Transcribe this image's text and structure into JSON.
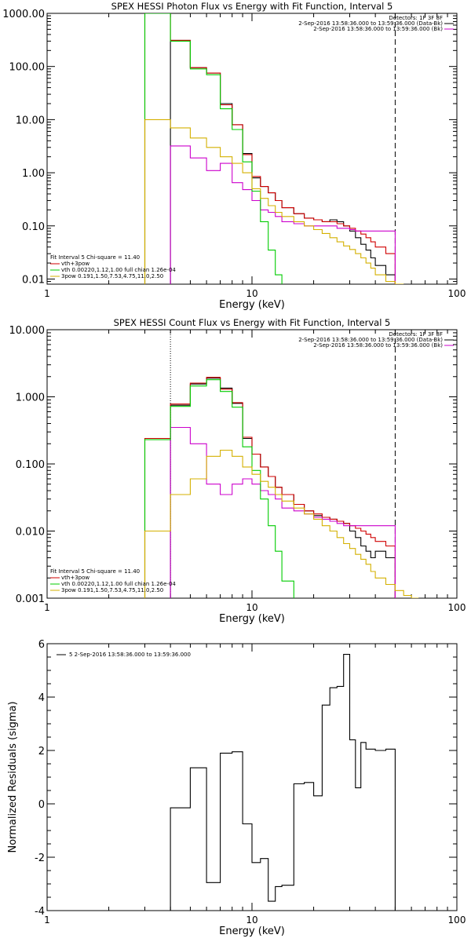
{
  "chart_data": [
    {
      "type": "line",
      "title": "SPEX HESSI Photon Flux vs Energy with Fit Function, Interval 5",
      "xlabel": "Energy (keV)",
      "ylabel": "",
      "xscale": "log",
      "yscale": "log",
      "xlim": [
        1,
        100
      ],
      "ylim": [
        0.008,
        1000
      ],
      "x_ticks": [
        "1",
        "10",
        "100"
      ],
      "y_ticks": [
        "0.01",
        "0.10",
        "1.00",
        "10.00",
        "100.00",
        "1000.00"
      ],
      "legend_top_right": [
        "Detectors: 1F 3F 8F",
        "2-Sep-2016 13:58:36.000 to 13:59:36.000 (Data-Bk)",
        "2-Sep-2016 13:58:36.000 to 13:59:36.000 (Bk)"
      ],
      "legend_bottom_left": [
        "Fit Interval 5   Chi-square = 11.40",
        "vth+3pow",
        "vth 0.00220,1.12,1.00  full chian 1.26e-04",
        "3pow 0.191,1.50,7.53,4.75,11.0,2.50"
      ],
      "markers": {
        "dashed_x": 50
      },
      "edges": [
        3,
        4,
        5,
        6,
        7,
        8,
        9,
        10,
        11,
        12,
        13,
        14,
        16,
        18,
        20,
        22,
        24,
        26,
        28,
        30,
        32,
        34,
        36,
        38,
        40,
        45,
        50,
        55,
        60
      ],
      "series": [
        {
          "name": "Data-Bk",
          "color": "#000000",
          "values": [
            null,
            310,
            95,
            75,
            20,
            8,
            2.3,
            0.8,
            0.55,
            0.42,
            0.3,
            0.22,
            0.17,
            0.14,
            0.13,
            0.12,
            0.13,
            0.12,
            0.1,
            0.08,
            0.06,
            0.045,
            0.035,
            0.025,
            0.018,
            0.012,
            null,
            null
          ]
        },
        {
          "name": "vth+3pow",
          "color": "#d00000",
          "values": [
            1000,
            310,
            95,
            75,
            19,
            8,
            2.2,
            0.85,
            0.55,
            0.42,
            0.3,
            0.22,
            0.17,
            0.14,
            0.13,
            0.12,
            0.12,
            0.11,
            0.1,
            0.09,
            0.08,
            0.07,
            0.06,
            0.05,
            0.04,
            0.03,
            null,
            null
          ]
        },
        {
          "name": "Bk",
          "color": "#cc00cc",
          "values": [
            null,
            3.2,
            1.9,
            1.1,
            1.5,
            0.65,
            0.48,
            0.3,
            0.2,
            0.18,
            0.15,
            0.12,
            0.11,
            0.1,
            0.1,
            0.1,
            0.1,
            0.09,
            0.09,
            0.085,
            0.08,
            0.08,
            0.08,
            0.08,
            0.08,
            0.08,
            null,
            null
          ]
        },
        {
          "name": "vth",
          "color": "#00cc00",
          "values": [
            1000,
            300,
            90,
            70,
            16,
            6.5,
            1.6,
            0.45,
            0.12,
            0.035,
            0.012,
            null,
            null,
            null,
            null,
            null,
            null,
            null,
            null,
            null,
            null,
            null,
            null,
            null,
            null,
            null,
            null,
            null
          ]
        },
        {
          "name": "3pow",
          "color": "#d4b000",
          "values": [
            10,
            7,
            4.5,
            3,
            2,
            1.5,
            1.0,
            0.5,
            0.33,
            0.24,
            0.18,
            0.15,
            0.12,
            0.1,
            0.085,
            0.072,
            0.06,
            0.05,
            0.042,
            0.036,
            0.03,
            0.025,
            0.02,
            0.016,
            0.012,
            0.009,
            0.007,
            null
          ]
        }
      ]
    },
    {
      "type": "line",
      "title": "SPEX HESSI Count Flux vs Energy with Fit Function, Interval 5",
      "xlabel": "Energy (keV)",
      "ylabel": "",
      "xscale": "log",
      "yscale": "log",
      "xlim": [
        1,
        100
      ],
      "ylim": [
        0.001,
        10
      ],
      "x_ticks": [
        "1",
        "10",
        "100"
      ],
      "y_ticks": [
        "0.001",
        "0.010",
        "0.100",
        "1.000",
        "10.000"
      ],
      "legend_top_right": [
        "Detectors: 1F 3F 8F",
        "2-Sep-2016 13:58:36.000 to 13:59:36.000 (Data-Bk)",
        "2-Sep-2016 13:58:36.000 to 13:59:36.000 (Bk)"
      ],
      "legend_bottom_left": [
        "Fit Interval 5   Chi-square = 11.40",
        "vth+3pow",
        "vth 0.00220,1.12,1.00  full chian 1.26e-04",
        "3pow 0.191,1.50,7.53,4.75,11.0,2.50"
      ],
      "markers": {
        "dotted_x": 4,
        "dashed_x": 50
      },
      "edges": [
        3,
        4,
        5,
        6,
        7,
        8,
        9,
        10,
        11,
        12,
        13,
        14,
        16,
        18,
        20,
        22,
        24,
        26,
        28,
        30,
        32,
        34,
        36,
        38,
        40,
        45,
        50,
        55,
        60,
        65,
        70
      ],
      "series": [
        {
          "name": "Data-Bk",
          "color": "#000000",
          "values": [
            null,
            0.75,
            1.55,
            1.9,
            1.35,
            0.8,
            0.24,
            0.14,
            0.09,
            0.065,
            0.045,
            0.035,
            0.025,
            0.02,
            0.017,
            0.016,
            0.015,
            0.014,
            0.013,
            0.01,
            0.008,
            0.006,
            0.005,
            0.004,
            0.005,
            0.004,
            null,
            null,
            null,
            null
          ]
        },
        {
          "name": "vth+3pow",
          "color": "#d00000",
          "values": [
            0.24,
            0.78,
            1.6,
            1.95,
            1.3,
            0.82,
            0.25,
            0.14,
            0.09,
            0.065,
            0.045,
            0.035,
            0.025,
            0.02,
            0.018,
            0.016,
            0.015,
            0.014,
            0.013,
            0.012,
            0.011,
            0.01,
            0.009,
            0.008,
            0.007,
            0.006,
            null,
            null,
            null,
            null
          ]
        },
        {
          "name": "Bk",
          "color": "#cc00cc",
          "values": [
            null,
            0.35,
            0.2,
            0.05,
            0.035,
            0.05,
            0.06,
            0.05,
            0.04,
            0.035,
            0.03,
            0.022,
            0.02,
            0.018,
            0.016,
            0.015,
            0.014,
            0.013,
            0.012,
            0.012,
            0.012,
            0.012,
            0.012,
            0.012,
            0.012,
            0.012,
            null,
            null,
            null,
            null
          ]
        },
        {
          "name": "vth",
          "color": "#00cc00",
          "values": [
            0.23,
            0.72,
            1.45,
            1.8,
            1.2,
            0.7,
            0.18,
            0.08,
            0.03,
            0.012,
            0.005,
            0.0018,
            null,
            null,
            null,
            null,
            null,
            null,
            null,
            null,
            null,
            null,
            null,
            null,
            null,
            null,
            null,
            null,
            null,
            null
          ]
        },
        {
          "name": "3pow",
          "color": "#d4b000",
          "values": [
            0.01,
            0.035,
            0.06,
            0.13,
            0.16,
            0.13,
            0.09,
            0.07,
            0.055,
            0.045,
            0.035,
            0.028,
            0.022,
            0.018,
            0.015,
            0.012,
            0.01,
            0.008,
            0.0065,
            0.0055,
            0.0045,
            0.0038,
            0.0032,
            0.0025,
            0.002,
            0.0016,
            0.0013,
            0.0011,
            0.001,
            null
          ]
        }
      ]
    },
    {
      "type": "line",
      "title": "",
      "xlabel": "Energy (keV)",
      "ylabel": "Normalized Residuals (sigma)",
      "xscale": "log",
      "xlim": [
        1,
        100
      ],
      "ylim": [
        -4,
        6
      ],
      "x_ticks": [
        "1",
        "10",
        "100"
      ],
      "y_ticks": [
        "-4",
        "-2",
        "0",
        "2",
        "4",
        "6"
      ],
      "legend": "5  2-Sep-2016 13:58:36.000 to 13:59:36.000",
      "edges": [
        4,
        5,
        6,
        7,
        8,
        9,
        10,
        11,
        12,
        13,
        14,
        16,
        18,
        20,
        22,
        24,
        26,
        28,
        30,
        32,
        34,
        36,
        38,
        40,
        45,
        50
      ],
      "series": [
        {
          "name": "5",
          "color": "#000000",
          "values": [
            -0.15,
            1.35,
            -2.95,
            1.9,
            1.95,
            -0.75,
            -2.2,
            -2.05,
            -3.65,
            -3.1,
            -3.05,
            0.75,
            0.8,
            0.3,
            3.7,
            4.35,
            4.4,
            5.6,
            2.4,
            0.6,
            2.3,
            2.05,
            2.05,
            2.0,
            2.05
          ]
        }
      ]
    }
  ]
}
